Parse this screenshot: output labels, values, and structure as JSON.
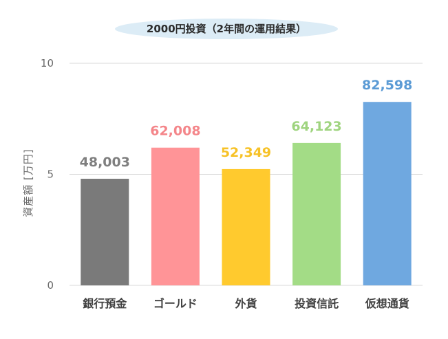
{
  "chart_data": {
    "type": "bar",
    "title": "2000円投資（2年間の運用結果）",
    "ylabel": "資産額 [万円]",
    "xlabel": "",
    "ylim": [
      0,
      10
    ],
    "yticks": [
      "0",
      "5",
      "10"
    ],
    "grid": true,
    "categories": [
      "銀行預金",
      "ゴールド",
      "外貨",
      "投資信託",
      "仮想通貨"
    ],
    "values": [
      4.8003,
      6.2008,
      5.2349,
      6.4123,
      8.2598
    ],
    "data_labels": [
      "48,003",
      "62,008",
      "52,349",
      "64,123",
      "82,598"
    ],
    "bar_colors": [
      "#7a7a7a",
      "#ff9497",
      "#ffca2e",
      "#a3dc86",
      "#6fa8e0"
    ],
    "label_colors": [
      "#7f7f7f",
      "#f4868a",
      "#f7c227",
      "#9fd47f",
      "#5b9bd5"
    ],
    "title_bg_color": "#dcecf6"
  }
}
